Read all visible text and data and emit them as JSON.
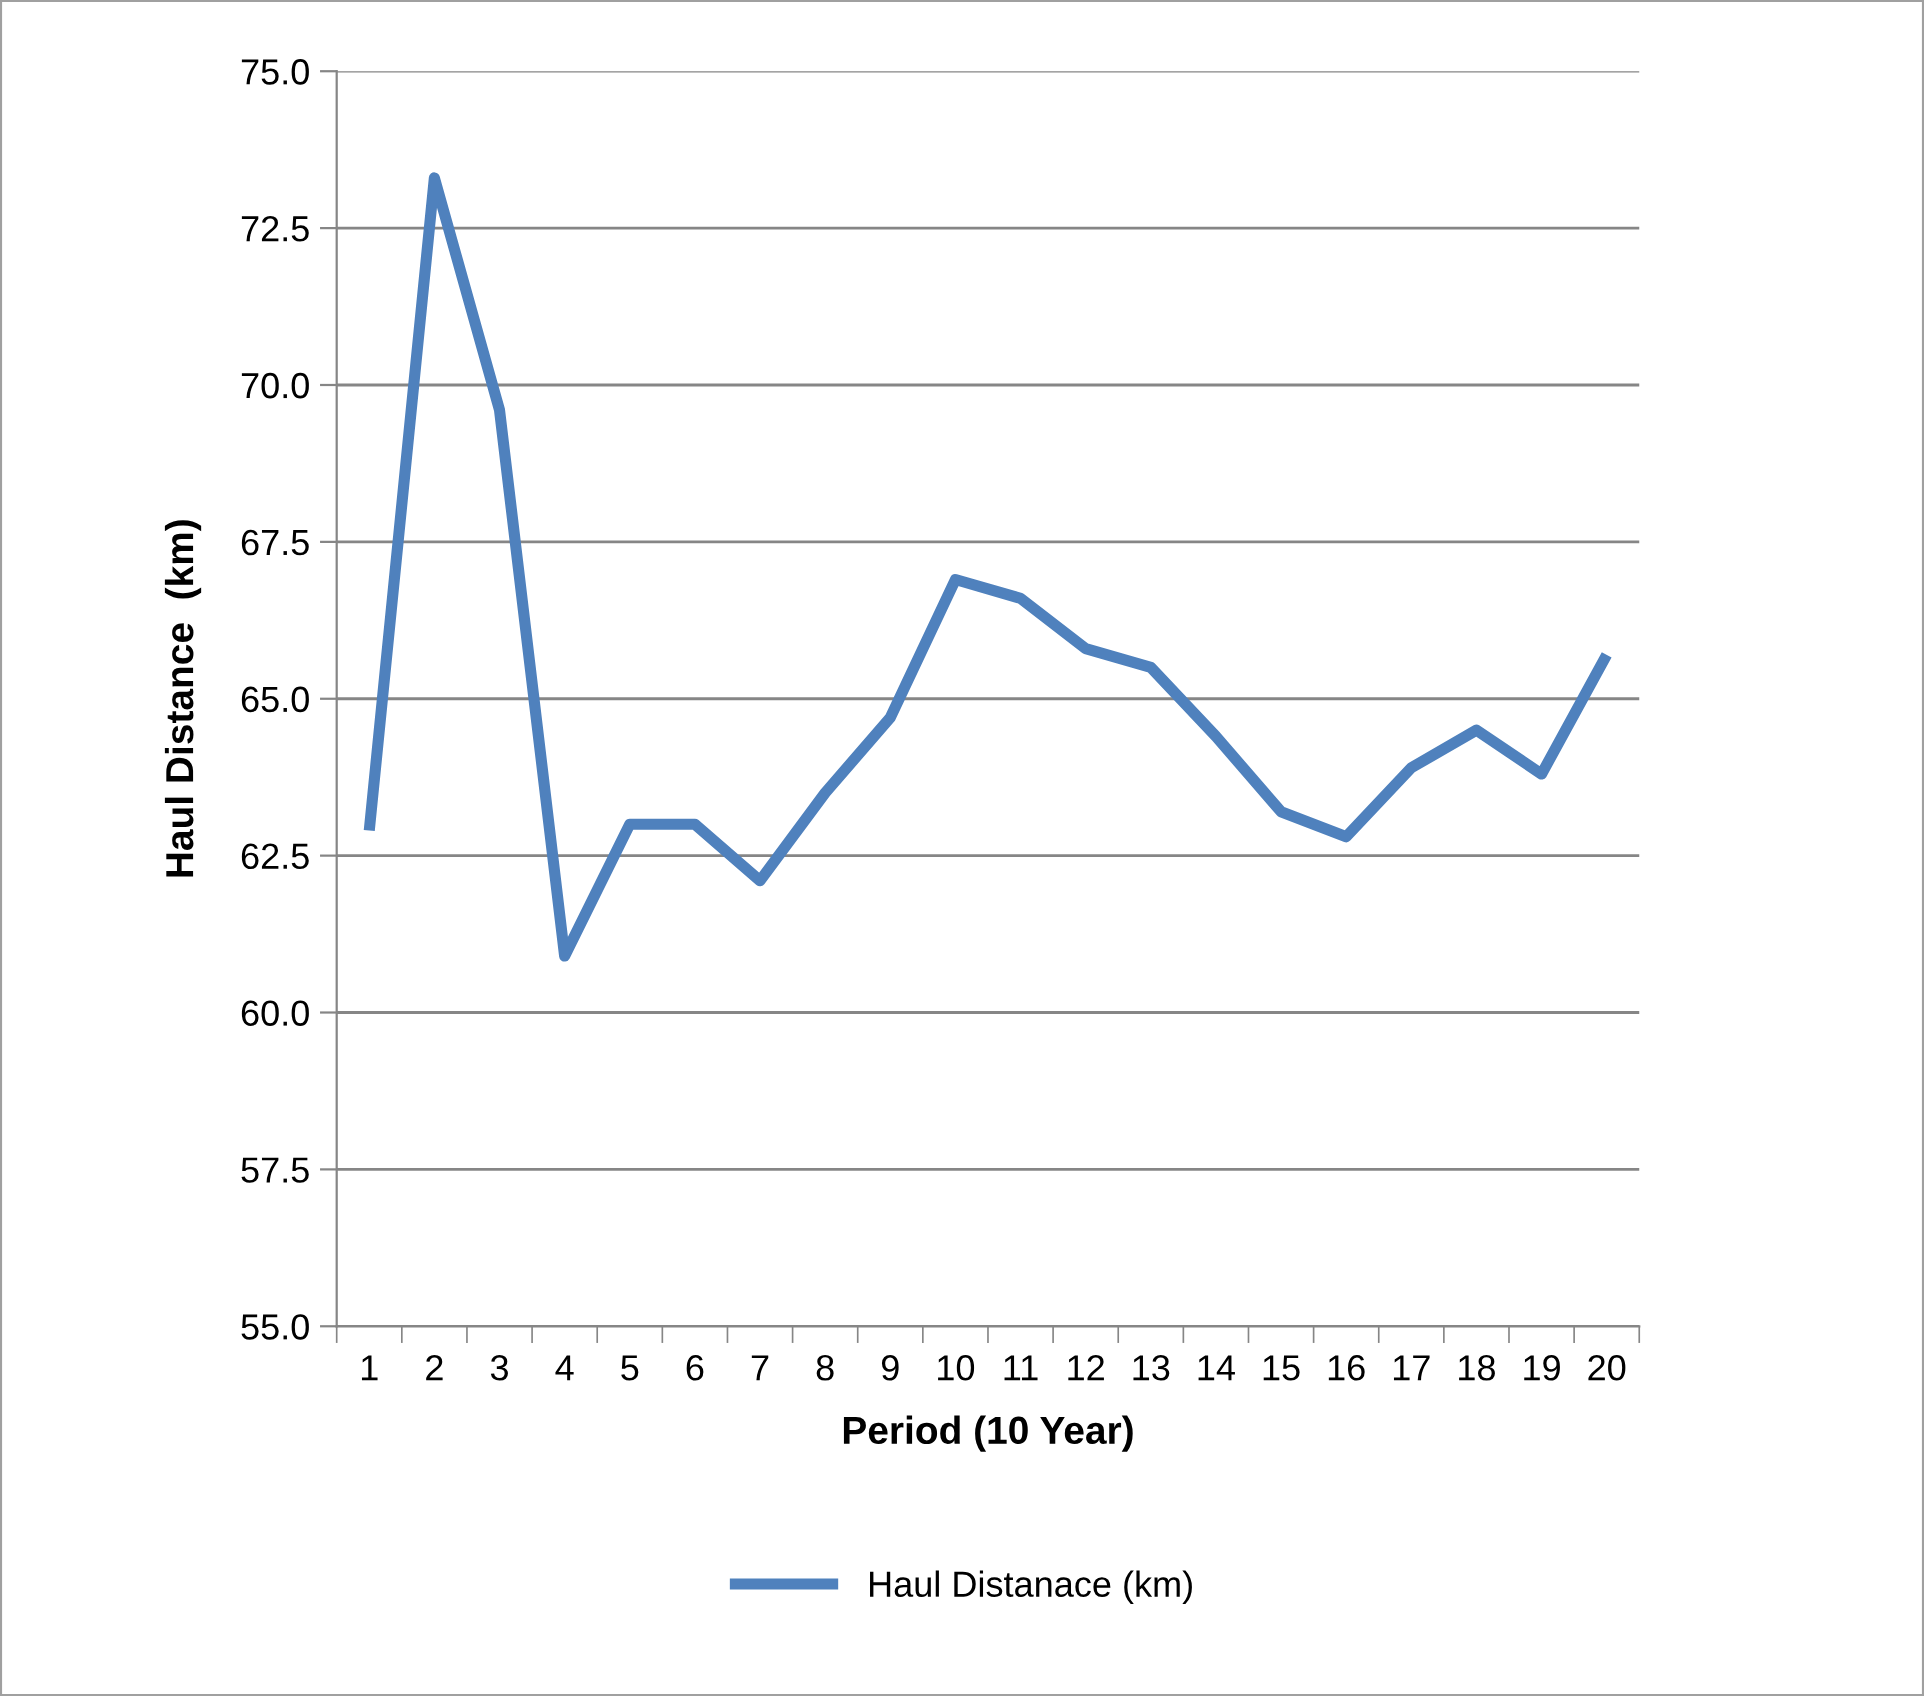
{
  "chart_data": {
    "type": "line",
    "xlabel": "Period (10 Year)",
    "ylabel": "Haul Distance  (km)",
    "categories": [
      "1",
      "2",
      "3",
      "4",
      "5",
      "6",
      "7",
      "8",
      "9",
      "10",
      "11",
      "12",
      "13",
      "14",
      "15",
      "16",
      "17",
      "18",
      "19",
      "20"
    ],
    "series": [
      {
        "name": "Haul Distanace (km)",
        "color": "#4f81bd",
        "values": [
          62.9,
          73.3,
          69.6,
          60.9,
          63.0,
          63.0,
          62.1,
          63.5,
          64.7,
          66.9,
          66.6,
          65.8,
          65.5,
          64.4,
          63.2,
          62.8,
          63.9,
          64.5,
          63.8,
          65.7
        ]
      }
    ],
    "ylim": [
      55,
      75
    ],
    "yticks": [
      {
        "value": 55,
        "label": "55.0"
      },
      {
        "value": 57.5,
        "label": "57.5"
      },
      {
        "value": 60,
        "label": "60.0"
      },
      {
        "value": 62.5,
        "label": "62.5"
      },
      {
        "value": 65,
        "label": "65.0"
      },
      {
        "value": 67.5,
        "label": "67.5"
      },
      {
        "value": 70,
        "label": "70.0"
      },
      {
        "value": 72.5,
        "label": "72.5"
      },
      {
        "value": 75,
        "label": "75.0"
      }
    ],
    "grid": "y",
    "legend": "bottom",
    "marker": "none",
    "line_style": "solid"
  }
}
